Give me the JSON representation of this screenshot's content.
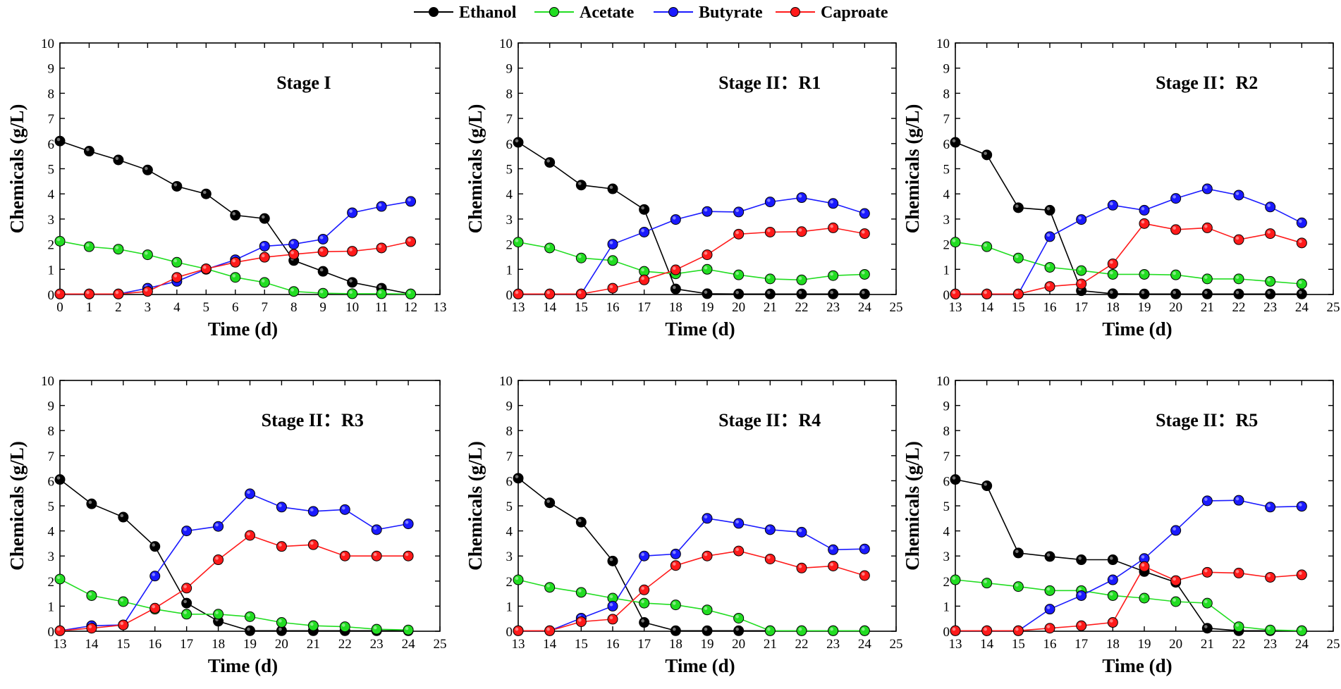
{
  "legend": [
    {
      "name": "Ethanol",
      "color": "#000000"
    },
    {
      "name": "Acetate",
      "color": "#22dd22"
    },
    {
      "name": "Butyrate",
      "color": "#1a1aff"
    },
    {
      "name": "Caproate",
      "color": "#ff1a1a"
    }
  ],
  "chart_data": [
    {
      "type": "line",
      "title": "Stage I",
      "xlabel": "Time (d)",
      "ylabel": "Chemicals (g/L)",
      "xlim": [
        0,
        13
      ],
      "ylim": [
        0,
        10
      ],
      "xticks": [
        0,
        1,
        2,
        3,
        4,
        5,
        6,
        7,
        8,
        9,
        10,
        11,
        12,
        13
      ],
      "yticks": [
        0,
        1,
        2,
        3,
        4,
        5,
        6,
        7,
        8,
        9,
        10
      ],
      "x": [
        0,
        1,
        2,
        3,
        4,
        5,
        6,
        7,
        8,
        9,
        10,
        11,
        12
      ],
      "series": [
        {
          "name": "Ethanol",
          "values": [
            6.1,
            5.7,
            5.35,
            4.95,
            4.3,
            4.0,
            3.15,
            3.02,
            1.35,
            0.92,
            0.48,
            0.25,
            0.02
          ]
        },
        {
          "name": "Acetate",
          "values": [
            2.12,
            1.9,
            1.8,
            1.58,
            1.28,
            1.02,
            0.68,
            0.48,
            0.12,
            0.05,
            0.03,
            0.03,
            0.02
          ]
        },
        {
          "name": "Butyrate",
          "values": [
            0.02,
            0.02,
            0.02,
            0.25,
            0.52,
            1.0,
            1.38,
            1.92,
            2.0,
            2.2,
            3.25,
            3.5,
            3.7
          ]
        },
        {
          "name": "Caproate",
          "values": [
            0.02,
            0.02,
            0.02,
            0.12,
            0.68,
            1.02,
            1.28,
            1.48,
            1.6,
            1.7,
            1.72,
            1.85,
            2.1
          ]
        }
      ]
    },
    {
      "type": "line",
      "title": "Stage II：R1",
      "xlabel": "Time (d)",
      "ylabel": "Chemicals (g/L)",
      "xlim": [
        13,
        25
      ],
      "ylim": [
        0,
        10
      ],
      "xticks": [
        13,
        14,
        15,
        16,
        17,
        18,
        19,
        20,
        21,
        22,
        23,
        24,
        25
      ],
      "yticks": [
        0,
        1,
        2,
        3,
        4,
        5,
        6,
        7,
        8,
        9,
        10
      ],
      "x": [
        13,
        14,
        15,
        16,
        17,
        18,
        19,
        20,
        21,
        22,
        23,
        24
      ],
      "series": [
        {
          "name": "Ethanol",
          "values": [
            6.05,
            5.25,
            4.35,
            4.2,
            3.38,
            0.22,
            0.03,
            0.02,
            0.02,
            0.02,
            0.02,
            0.02
          ]
        },
        {
          "name": "Acetate",
          "values": [
            2.08,
            1.85,
            1.45,
            1.35,
            0.92,
            0.82,
            1.0,
            0.78,
            0.62,
            0.58,
            0.75,
            0.8
          ]
        },
        {
          "name": "Butyrate",
          "values": [
            0.02,
            0.02,
            0.02,
            2.0,
            2.48,
            2.98,
            3.3,
            3.28,
            3.68,
            3.85,
            3.62,
            3.22
          ]
        },
        {
          "name": "Caproate",
          "values": [
            0.02,
            0.02,
            0.02,
            0.25,
            0.58,
            0.98,
            1.58,
            2.4,
            2.48,
            2.5,
            2.65,
            2.42
          ]
        }
      ]
    },
    {
      "type": "line",
      "title": "Stage II：R2",
      "xlabel": "Time (d)",
      "ylabel": "Chemicals (g/L)",
      "xlim": [
        13,
        25
      ],
      "ylim": [
        0,
        10
      ],
      "xticks": [
        13,
        14,
        15,
        16,
        17,
        18,
        19,
        20,
        21,
        22,
        23,
        24,
        25
      ],
      "yticks": [
        0,
        1,
        2,
        3,
        4,
        5,
        6,
        7,
        8,
        9,
        10
      ],
      "x": [
        13,
        14,
        15,
        16,
        17,
        18,
        19,
        20,
        21,
        22,
        23,
        24
      ],
      "series": [
        {
          "name": "Ethanol",
          "values": [
            6.05,
            5.55,
            3.45,
            3.35,
            0.15,
            0.03,
            0.02,
            0.02,
            0.02,
            0.02,
            0.02,
            0.02
          ]
        },
        {
          "name": "Acetate",
          "values": [
            2.08,
            1.9,
            1.45,
            1.08,
            0.95,
            0.8,
            0.8,
            0.78,
            0.62,
            0.62,
            0.52,
            0.42
          ]
        },
        {
          "name": "Butyrate",
          "values": [
            0.02,
            0.02,
            0.02,
            2.3,
            2.98,
            3.55,
            3.35,
            3.82,
            4.2,
            3.95,
            3.48,
            2.85
          ]
        },
        {
          "name": "Caproate",
          "values": [
            0.02,
            0.02,
            0.02,
            0.32,
            0.42,
            1.22,
            2.82,
            2.58,
            2.65,
            2.18,
            2.42,
            2.05
          ]
        }
      ]
    },
    {
      "type": "line",
      "title": "Stage II：R3",
      "xlabel": "Time (d)",
      "ylabel": "Chemicals (g/L)",
      "xlim": [
        13,
        25
      ],
      "ylim": [
        0,
        10
      ],
      "xticks": [
        13,
        14,
        15,
        16,
        17,
        18,
        19,
        20,
        21,
        22,
        23,
        24,
        25
      ],
      "yticks": [
        0,
        1,
        2,
        3,
        4,
        5,
        6,
        7,
        8,
        9,
        10
      ],
      "x": [
        13,
        14,
        15,
        16,
        17,
        18,
        19,
        20,
        21,
        22,
        23,
        24
      ],
      "series": [
        {
          "name": "Ethanol",
          "values": [
            6.05,
            5.08,
            4.55,
            3.38,
            1.12,
            0.4,
            0.02,
            0.02,
            0.02,
            0.02,
            0.02,
            0.02
          ]
        },
        {
          "name": "Acetate",
          "values": [
            2.08,
            1.42,
            1.18,
            0.88,
            0.68,
            0.68,
            0.58,
            0.35,
            0.22,
            0.18,
            0.08,
            0.05
          ]
        },
        {
          "name": "Butyrate",
          "values": [
            0.02,
            0.22,
            0.25,
            2.2,
            4.0,
            4.18,
            5.48,
            4.95,
            4.78,
            4.85,
            4.05,
            4.28
          ]
        },
        {
          "name": "Caproate",
          "values": [
            0.02,
            0.12,
            0.25,
            0.92,
            1.72,
            2.85,
            3.82,
            3.38,
            3.45,
            3.0,
            3.0,
            3.0
          ]
        }
      ]
    },
    {
      "type": "line",
      "title": "Stage II：R4",
      "xlabel": "Time (d)",
      "ylabel": "Chemicals (g/L)",
      "xlim": [
        13,
        25
      ],
      "ylim": [
        0,
        10
      ],
      "xticks": [
        13,
        14,
        15,
        16,
        17,
        18,
        19,
        20,
        21,
        22,
        23,
        24,
        25
      ],
      "yticks": [
        0,
        1,
        2,
        3,
        4,
        5,
        6,
        7,
        8,
        9,
        10
      ],
      "x": [
        13,
        14,
        15,
        16,
        17,
        18,
        19,
        20,
        21,
        22,
        23,
        24
      ],
      "series": [
        {
          "name": "Ethanol",
          "values": [
            6.1,
            5.12,
            4.35,
            2.8,
            0.35,
            0.02,
            0.02,
            0.02,
            0.02,
            0.02,
            0.02,
            0.02
          ]
        },
        {
          "name": "Acetate",
          "values": [
            2.05,
            1.75,
            1.55,
            1.32,
            1.12,
            1.05,
            0.85,
            0.52,
            0.02,
            0.02,
            0.02,
            0.02
          ]
        },
        {
          "name": "Butyrate",
          "values": [
            0.02,
            0.02,
            0.52,
            1.0,
            3.0,
            3.08,
            4.5,
            4.3,
            4.05,
            3.95,
            3.25,
            3.28
          ]
        },
        {
          "name": "Caproate",
          "values": [
            0.02,
            0.02,
            0.38,
            0.48,
            1.65,
            2.62,
            3.0,
            3.2,
            2.88,
            2.52,
            2.6,
            2.22
          ]
        }
      ]
    },
    {
      "type": "line",
      "title": "Stage II：R5",
      "xlabel": "Time (d)",
      "ylabel": "Chemicals  (g/L)",
      "xlim": [
        13,
        25
      ],
      "ylim": [
        0,
        10
      ],
      "xticks": [
        13,
        14,
        15,
        16,
        17,
        18,
        19,
        20,
        21,
        22,
        23,
        24,
        25
      ],
      "yticks": [
        0,
        1,
        2,
        3,
        4,
        5,
        6,
        7,
        8,
        9,
        10
      ],
      "x": [
        13,
        14,
        15,
        16,
        17,
        18,
        19,
        20,
        21,
        22,
        23,
        24
      ],
      "series": [
        {
          "name": "Ethanol",
          "values": [
            6.05,
            5.8,
            3.12,
            2.98,
            2.85,
            2.85,
            2.38,
            1.95,
            0.12,
            0.02,
            0.02,
            0.02
          ]
        },
        {
          "name": "Acetate",
          "values": [
            2.05,
            1.92,
            1.78,
            1.62,
            1.62,
            1.42,
            1.32,
            1.18,
            1.12,
            0.18,
            0.05,
            0.02
          ]
        },
        {
          "name": "Butyrate",
          "values": [
            0.02,
            0.02,
            0.02,
            0.88,
            1.42,
            2.05,
            2.9,
            4.02,
            5.2,
            5.22,
            4.95,
            4.98
          ]
        },
        {
          "name": "Caproate",
          "values": [
            0.02,
            0.02,
            0.02,
            0.12,
            0.22,
            0.35,
            2.58,
            2.02,
            2.35,
            2.32,
            2.15,
            2.25
          ]
        }
      ]
    }
  ]
}
